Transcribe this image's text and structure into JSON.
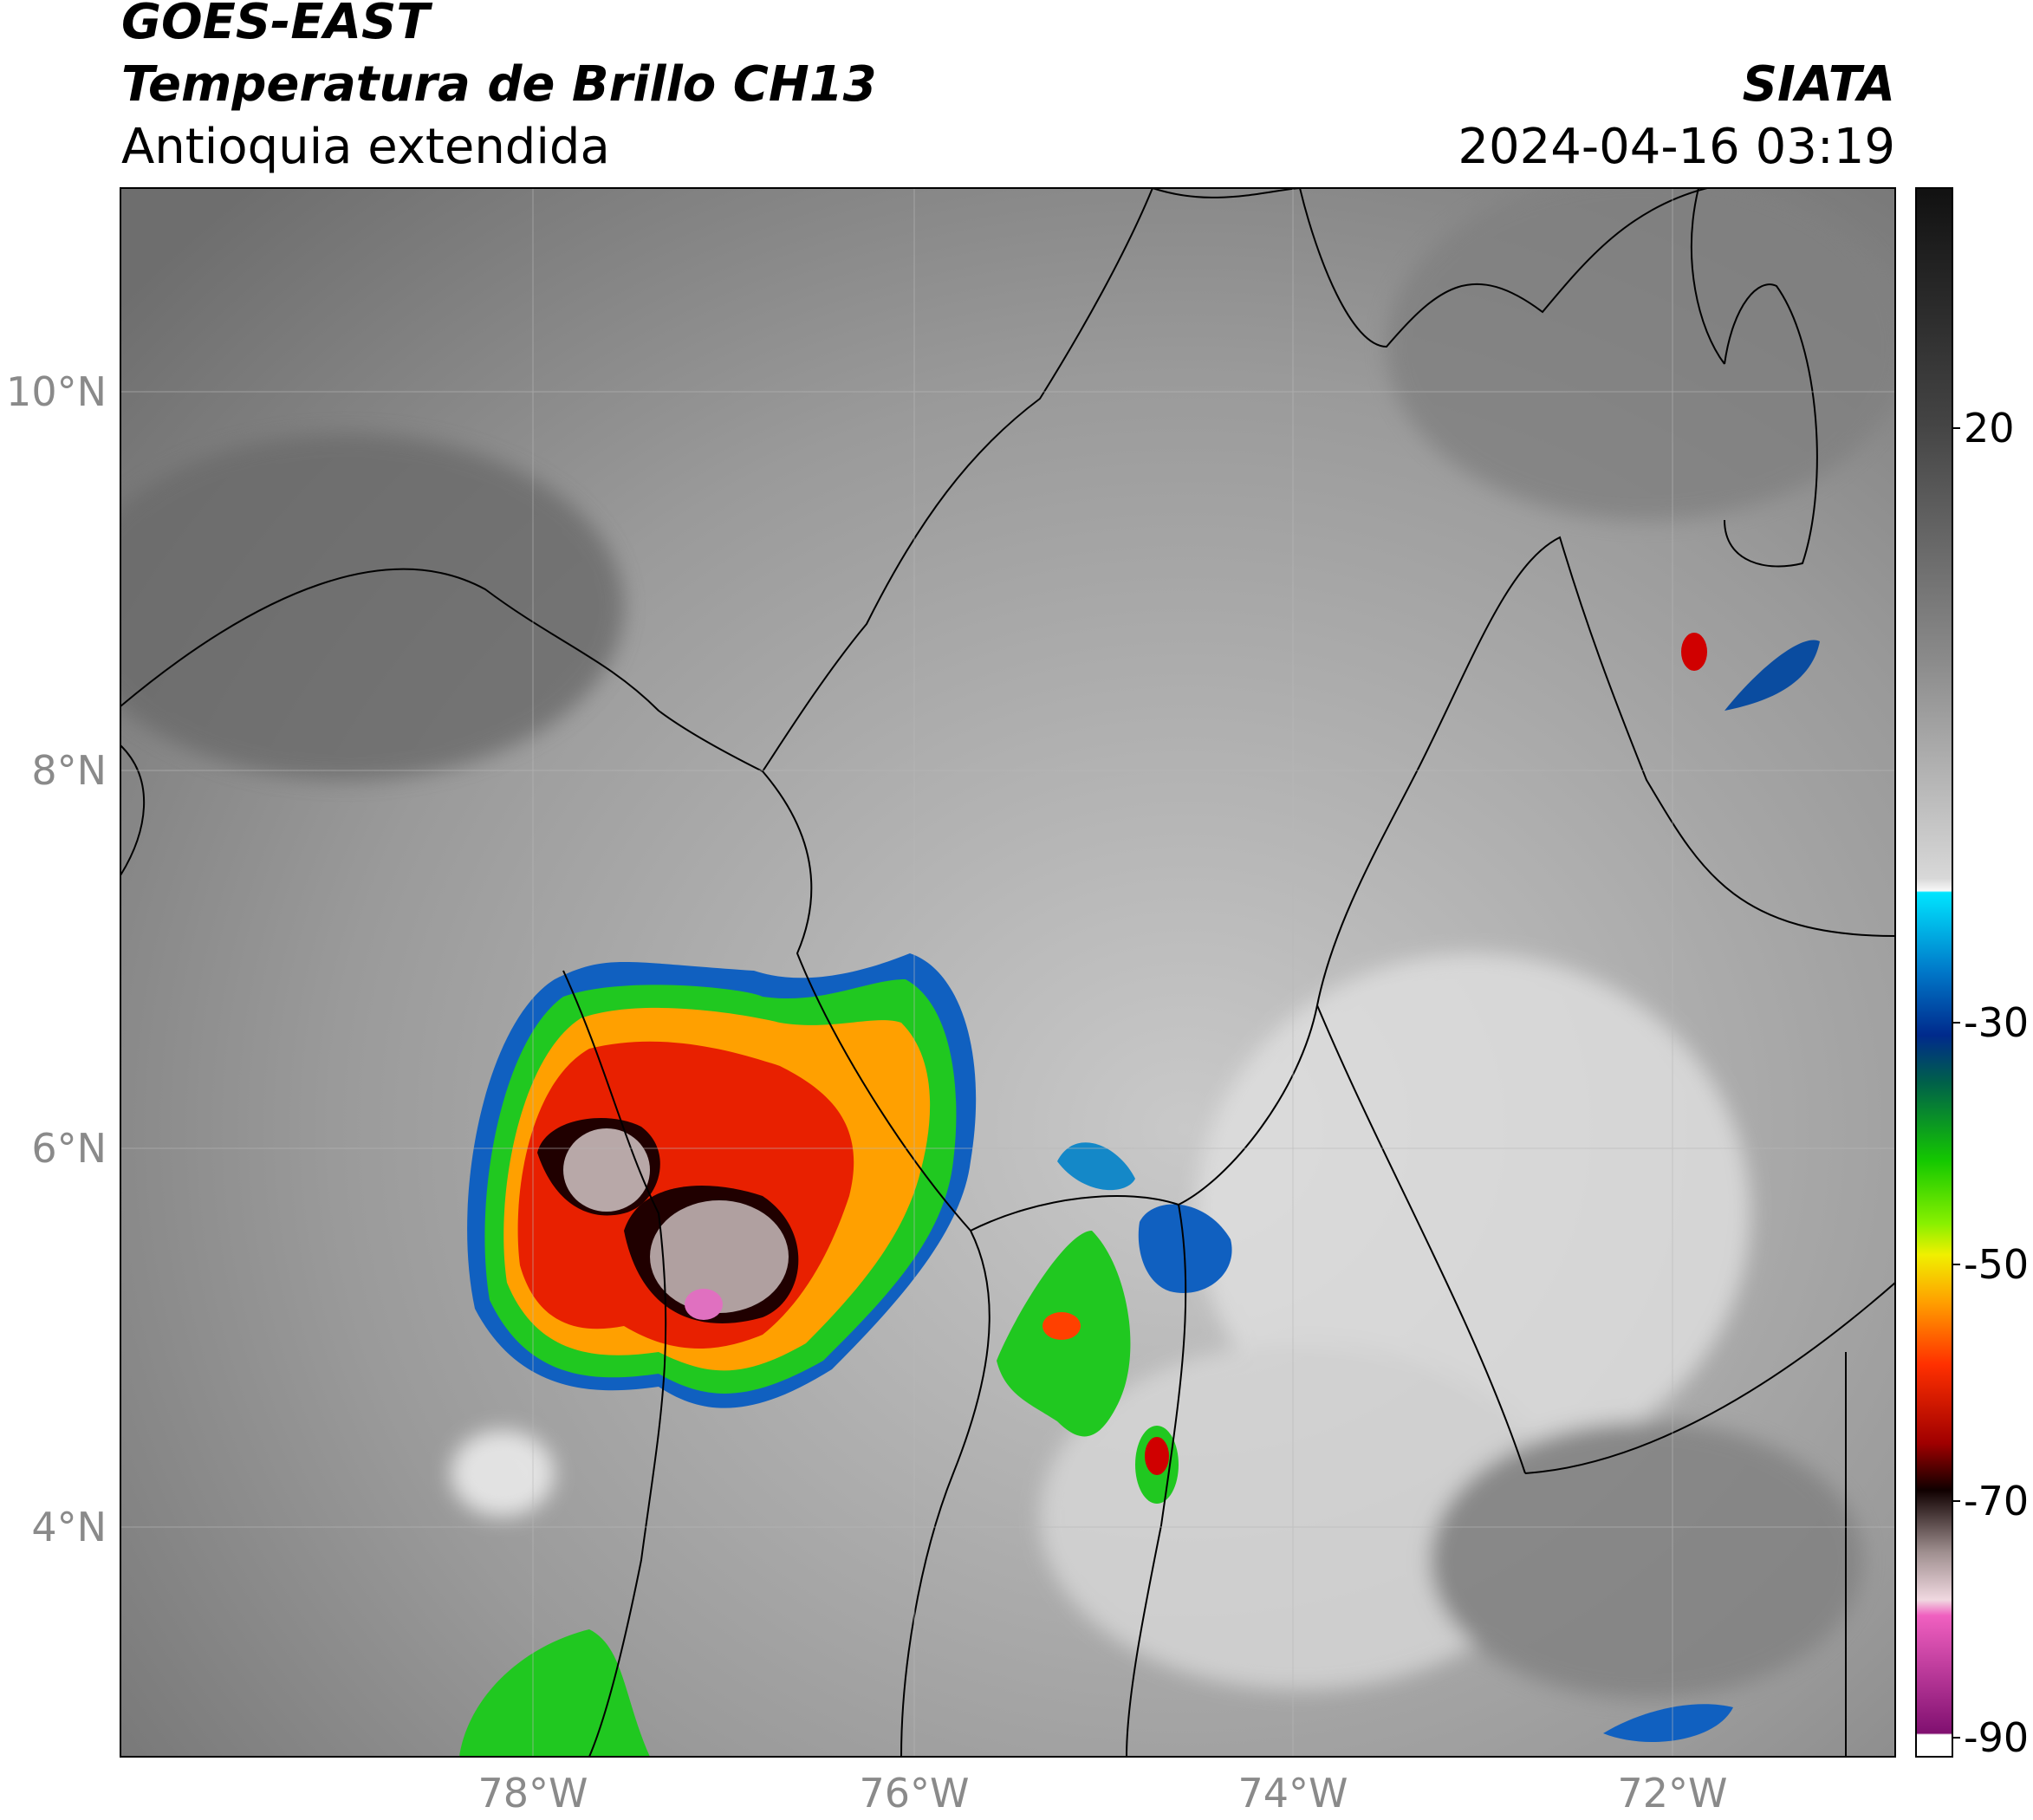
{
  "header": {
    "satellite": "GOES-EAST",
    "product": "Temperatura de Brillo CH13",
    "region": "Antioquia extendida",
    "source": "SIATA",
    "timestamp": "2024-04-16 03:19"
  },
  "map": {
    "lat_labels": [
      "10°N",
      "8°N",
      "6°N",
      "4°N"
    ],
    "lon_labels": [
      "78°W",
      "76°W",
      "74°W",
      "72°W"
    ]
  },
  "colorbar": {
    "tick_labels": [
      20,
      -30,
      -50,
      -70,
      -90
    ]
  }
}
